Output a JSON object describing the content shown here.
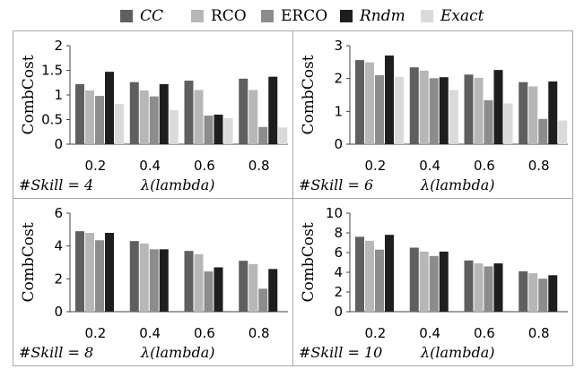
{
  "legend": [
    {
      "label": "CC",
      "italic": true,
      "color": "#5f5f5f"
    },
    {
      "label": "RCO",
      "italic": false,
      "color": "#b7b7b7"
    },
    {
      "label": "ERCO",
      "italic": false,
      "color": "#8c8c8c"
    },
    {
      "label": "Rndm",
      "italic": true,
      "color": "#1e1e1e"
    },
    {
      "label": "Exact",
      "italic": true,
      "color": "#dadada"
    }
  ],
  "chart_data": [
    {
      "type": "bar",
      "categories": [
        "0.2",
        "0.4",
        "0.6",
        "0.8"
      ],
      "ylabel": "CombCost",
      "xlabel": "λ(lambda)",
      "subtitle": "#Skill = 4",
      "ylim": [
        0,
        2
      ],
      "yticks": [
        "0",
        "0.5",
        "1",
        "1.5",
        "2"
      ],
      "series": [
        {
          "name": "CC",
          "values": [
            1.22,
            1.26,
            1.29,
            1.33
          ]
        },
        {
          "name": "RCO",
          "values": [
            1.09,
            1.09,
            1.1,
            1.1
          ]
        },
        {
          "name": "ERCO",
          "values": [
            0.98,
            0.97,
            0.58,
            0.35
          ]
        },
        {
          "name": "Rndm",
          "values": [
            1.47,
            1.22,
            0.6,
            1.37
          ]
        },
        {
          "name": "Exact",
          "values": [
            0.82,
            0.69,
            0.53,
            0.34
          ]
        }
      ]
    },
    {
      "type": "bar",
      "categories": [
        "0.2",
        "0.4",
        "0.6",
        "0.8"
      ],
      "ylabel": "CombCost",
      "xlabel": "λ(lambda)",
      "subtitle": "#Skill = 6",
      "ylim": [
        0,
        3
      ],
      "yticks": [
        "0",
        "1",
        "2",
        "3"
      ],
      "series": [
        {
          "name": "CC",
          "values": [
            2.56,
            2.34,
            2.12,
            1.89
          ]
        },
        {
          "name": "RCO",
          "values": [
            2.49,
            2.24,
            2.02,
            1.76
          ]
        },
        {
          "name": "ERCO",
          "values": [
            2.1,
            2.01,
            1.34,
            0.77
          ]
        },
        {
          "name": "Rndm",
          "values": [
            2.7,
            2.04,
            2.26,
            1.91
          ]
        },
        {
          "name": "Exact",
          "values": [
            2.05,
            1.65,
            1.24,
            0.72
          ]
        }
      ]
    },
    {
      "type": "bar",
      "categories": [
        "0.2",
        "0.4",
        "0.6",
        "0.8"
      ],
      "ylabel": "CombCost",
      "xlabel": "λ(lambda)",
      "subtitle": "#Skill = 8",
      "ylim": [
        0,
        6
      ],
      "yticks": [
        "0",
        "2",
        "4",
        "6"
      ],
      "series": [
        {
          "name": "CC",
          "values": [
            4.9,
            4.3,
            3.7,
            3.1
          ]
        },
        {
          "name": "RCO",
          "values": [
            4.8,
            4.15,
            3.5,
            2.9
          ]
        },
        {
          "name": "ERCO",
          "values": [
            4.35,
            3.8,
            2.45,
            1.4
          ]
        },
        {
          "name": "Rndm",
          "values": [
            4.8,
            3.8,
            2.7,
            2.6
          ]
        },
        {
          "name": "Exact",
          "values": [
            0,
            0,
            0,
            0
          ]
        }
      ]
    },
    {
      "type": "bar",
      "categories": [
        "0.2",
        "0.4",
        "0.6",
        "0.8"
      ],
      "ylabel": "CombCost",
      "xlabel": "λ(lambda)",
      "subtitle": "#Skill = 10",
      "ylim": [
        0,
        10
      ],
      "yticks": [
        "0",
        "2",
        "4",
        "6",
        "8",
        "10"
      ],
      "series": [
        {
          "name": "CC",
          "values": [
            7.6,
            6.5,
            5.2,
            4.1
          ]
        },
        {
          "name": "RCO",
          "values": [
            7.2,
            6.1,
            4.9,
            3.9
          ]
        },
        {
          "name": "ERCO",
          "values": [
            6.3,
            5.65,
            4.6,
            3.35
          ]
        },
        {
          "name": "Rndm",
          "values": [
            7.8,
            6.1,
            4.9,
            3.7
          ]
        },
        {
          "name": "Exact",
          "values": [
            0,
            0,
            0,
            0
          ]
        }
      ]
    }
  ]
}
